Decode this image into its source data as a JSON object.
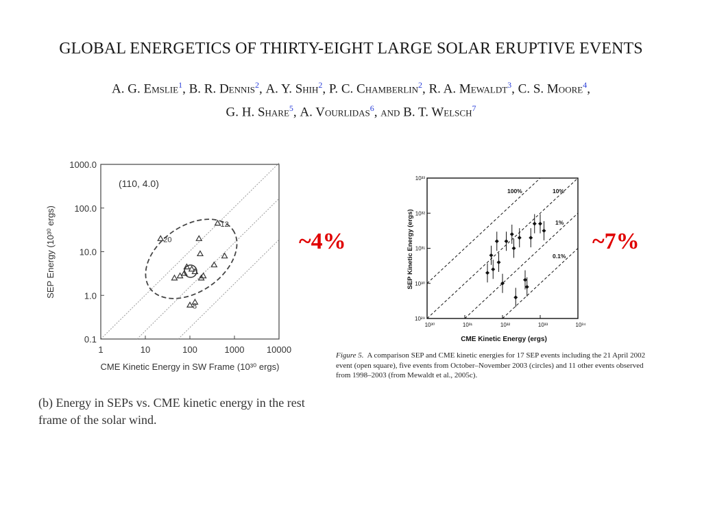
{
  "paper": {
    "title": "GLOBAL ENERGETICS OF THIRTY-EIGHT LARGE SOLAR ERUPTIVE EVENTS",
    "authors_line1": [
      {
        "name": "A. G. Emslie",
        "sup": "1"
      },
      {
        "name": "B. R. Dennis",
        "sup": "2"
      },
      {
        "name": "A. Y. Shih",
        "sup": "2"
      },
      {
        "name": "P. C. Chamberlin",
        "sup": "2"
      },
      {
        "name": "R. A. Mewaldt",
        "sup": "3"
      },
      {
        "name": "C. S. Moore",
        "sup": "4"
      }
    ],
    "authors_line2": [
      {
        "name": "G. H. Share",
        "sup": "5"
      },
      {
        "name": "A. Vourlidas",
        "sup": "6"
      },
      {
        "name": "B. T. Welsch",
        "sup": "7"
      }
    ],
    "and_word": "and"
  },
  "annotations": {
    "left_percent": "~4%",
    "right_percent": "~7%"
  },
  "colors": {
    "annotation": "#e00000",
    "sup_link": "#2a3fd8"
  },
  "left_figure": {
    "caption": "(b) Energy in SEPs vs. CME kinetic energy in the rest frame of the solar wind."
  },
  "right_figure": {
    "caption_label": "Figure 5.",
    "caption_text": "A comparison SEP and CME kinetic energies for 17 SEP events including the 21 April 2002 event (open square), five events from October–November 2003 (circles) and 11 other events observed from 1998–2003 (from Mewaldt et al., 2005c)."
  },
  "chart_data": [
    {
      "type": "scatter",
      "xlabel": "CME Kinetic Energy in SW Frame (10³⁰ ergs)",
      "ylabel": "SEP Energy (10³⁰ ergs)",
      "x_scale": "log",
      "y_scale": "log",
      "xlim": [
        1,
        10000
      ],
      "ylim": [
        0.1,
        1000
      ],
      "x_ticks": [
        "1",
        "10",
        "100",
        "1000",
        "10000"
      ],
      "y_ticks": [
        "1000.0",
        "100.0",
        "10.0",
        "1.0",
        "0.1"
      ],
      "annotation": "(110, 4.0)",
      "center": [
        110,
        4.0
      ],
      "ellipse": "dashed",
      "reference_lines": [
        "dotted diagonal lines (ratio 1, 0.1, 0.01)"
      ],
      "points": [
        {
          "x": 22,
          "y": 20,
          "label": "20"
        },
        {
          "x": 420,
          "y": 45,
          "label": "12"
        },
        {
          "x": 100,
          "y": 0.6,
          "label": "8"
        },
        {
          "x": 45,
          "y": 2.5
        },
        {
          "x": 60,
          "y": 2.8
        },
        {
          "x": 75,
          "y": 3.2
        },
        {
          "x": 85,
          "y": 4.5
        },
        {
          "x": 110,
          "y": 4.0
        },
        {
          "x": 130,
          "y": 3.5
        },
        {
          "x": 170,
          "y": 9
        },
        {
          "x": 180,
          "y": 2.5
        },
        {
          "x": 200,
          "y": 2.8
        },
        {
          "x": 160,
          "y": 20
        },
        {
          "x": 350,
          "y": 5
        },
        {
          "x": 600,
          "y": 8
        },
        {
          "x": 130,
          "y": 0.7
        }
      ]
    },
    {
      "type": "scatter",
      "xlabel": "CME Kinetic Energy (ergs)",
      "ylabel": "SEP Kinetic Energy (ergs)",
      "x_scale": "log",
      "y_scale": "log",
      "x_ticks": [
        "10³⁰",
        "10³¹",
        "10³²",
        "10³³",
        "10³⁴"
      ],
      "y_ticks": [
        "10³³",
        "10³²",
        "10³¹",
        "10³⁰",
        "10²⁹"
      ],
      "ratio_lines": [
        "100%",
        "10%",
        "1%",
        "0.1%"
      ],
      "points_log10": [
        {
          "x": 31.6,
          "y": 30.3
        },
        {
          "x": 31.7,
          "y": 30.8
        },
        {
          "x": 31.75,
          "y": 30.4
        },
        {
          "x": 31.85,
          "y": 31.2
        },
        {
          "x": 31.9,
          "y": 30.6
        },
        {
          "x": 32.0,
          "y": 30.0
        },
        {
          "x": 32.1,
          "y": 31.2
        },
        {
          "x": 32.25,
          "y": 31.4
        },
        {
          "x": 32.3,
          "y": 31.0
        },
        {
          "x": 32.35,
          "y": 29.6
        },
        {
          "x": 32.45,
          "y": 31.3
        },
        {
          "x": 32.6,
          "y": 30.1
        },
        {
          "x": 32.65,
          "y": 29.9
        },
        {
          "x": 32.75,
          "y": 31.3
        },
        {
          "x": 32.85,
          "y": 31.7
        },
        {
          "x": 33.0,
          "y": 31.7
        },
        {
          "x": 33.1,
          "y": 31.5
        }
      ]
    }
  ]
}
